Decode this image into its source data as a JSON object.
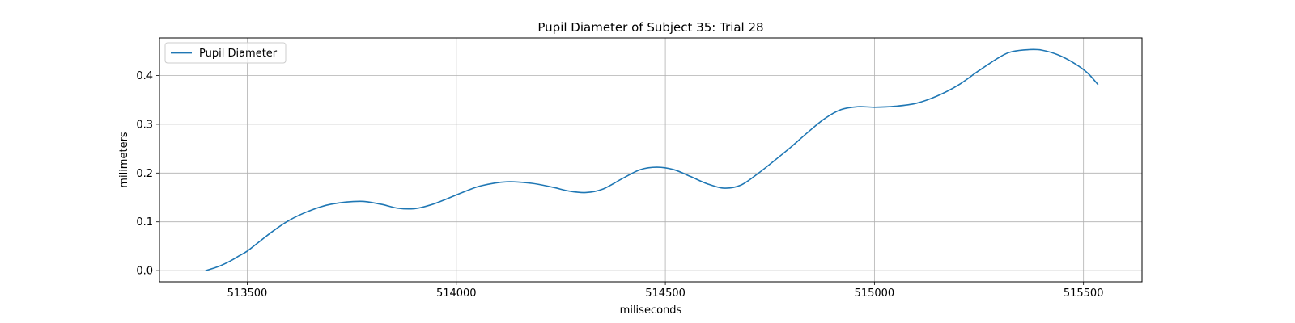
{
  "chart_data": {
    "type": "line",
    "title": "Pupil Diameter of Subject 35: Trial 28",
    "xlabel": "miliseconds",
    "ylabel": "milimeters",
    "xlim": [
      513290,
      515640
    ],
    "ylim": [
      -0.023,
      0.477
    ],
    "xticks": [
      513500,
      514000,
      514500,
      515000,
      515500
    ],
    "yticks": [
      0.0,
      0.1,
      0.2,
      0.3,
      0.4
    ],
    "xtick_labels": [
      "513500",
      "514000",
      "514500",
      "515000",
      "515500"
    ],
    "ytick_labels": [
      "0.0",
      "0.1",
      "0.2",
      "0.3",
      "0.4"
    ],
    "grid": true,
    "legend_position": "upper-left",
    "series": [
      {
        "name": "Pupil Diameter",
        "color": "#1f77b4",
        "x": [
          513400,
          513430,
          513460,
          513480,
          513500,
          513530,
          513560,
          513600,
          513650,
          513700,
          513770,
          513820,
          513860,
          513900,
          513940,
          513980,
          514020,
          514060,
          514120,
          514180,
          514230,
          514270,
          514310,
          514350,
          514400,
          514440,
          514480,
          514520,
          514560,
          514600,
          514640,
          514680,
          514720,
          514760,
          514800,
          514840,
          514880,
          514920,
          514960,
          515000,
          515050,
          515100,
          515150,
          515200,
          515250,
          515300,
          515330,
          515370,
          515400,
          515440,
          515480,
          515510,
          515535
        ],
        "y": [
          0.0,
          0.008,
          0.02,
          0.03,
          0.04,
          0.06,
          0.08,
          0.103,
          0.123,
          0.136,
          0.142,
          0.136,
          0.128,
          0.127,
          0.135,
          0.148,
          0.162,
          0.174,
          0.182,
          0.179,
          0.171,
          0.163,
          0.16,
          0.167,
          0.19,
          0.207,
          0.212,
          0.207,
          0.193,
          0.178,
          0.169,
          0.175,
          0.198,
          0.225,
          0.253,
          0.283,
          0.311,
          0.33,
          0.336,
          0.335,
          0.337,
          0.343,
          0.358,
          0.38,
          0.41,
          0.438,
          0.449,
          0.453,
          0.452,
          0.442,
          0.424,
          0.405,
          0.381
        ]
      }
    ]
  }
}
